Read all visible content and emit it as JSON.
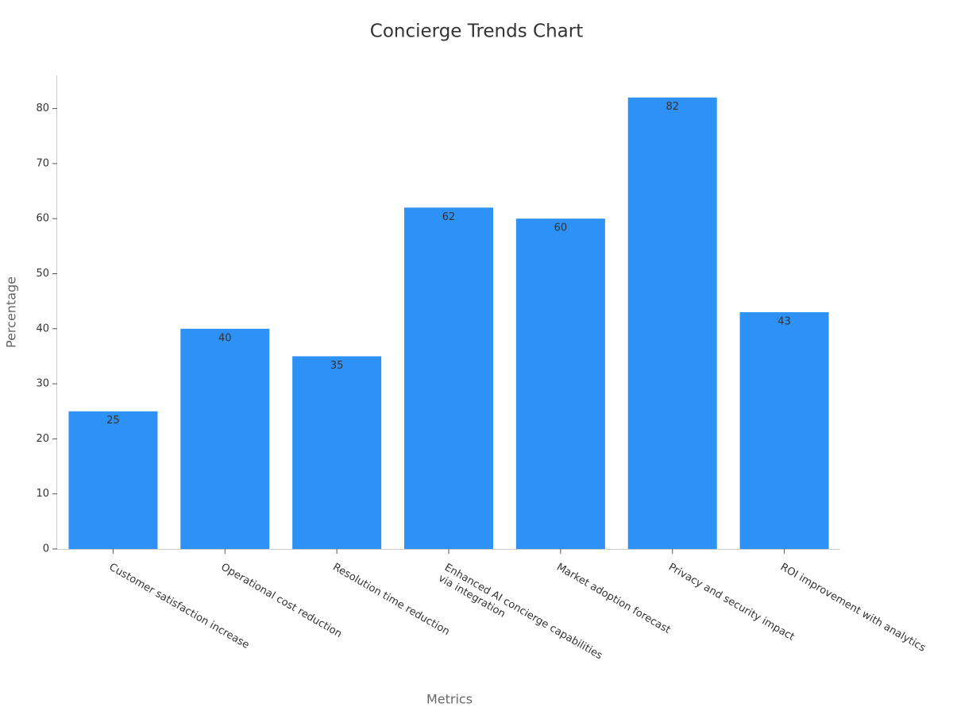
{
  "chart_data": {
    "type": "bar",
    "title": "Concierge Trends Chart",
    "x_label": "Metrics",
    "y_label": "Percentage",
    "categories": [
      "Customer satisfaction increase",
      "Operational cost reduction",
      "Resolution time reduction",
      "Enhanced AI concierge capabilities\nvia integration",
      "Market adoption forecast",
      "Privacy and security impact",
      "ROI improvement with analytics"
    ],
    "values": [
      25,
      40,
      35,
      62,
      60,
      82,
      43
    ],
    "color": "#2e91f5",
    "ylim": [
      0,
      86
    ],
    "yticks": [
      0,
      10,
      20,
      30,
      40,
      50,
      60,
      70,
      80
    ],
    "grid": false
  }
}
